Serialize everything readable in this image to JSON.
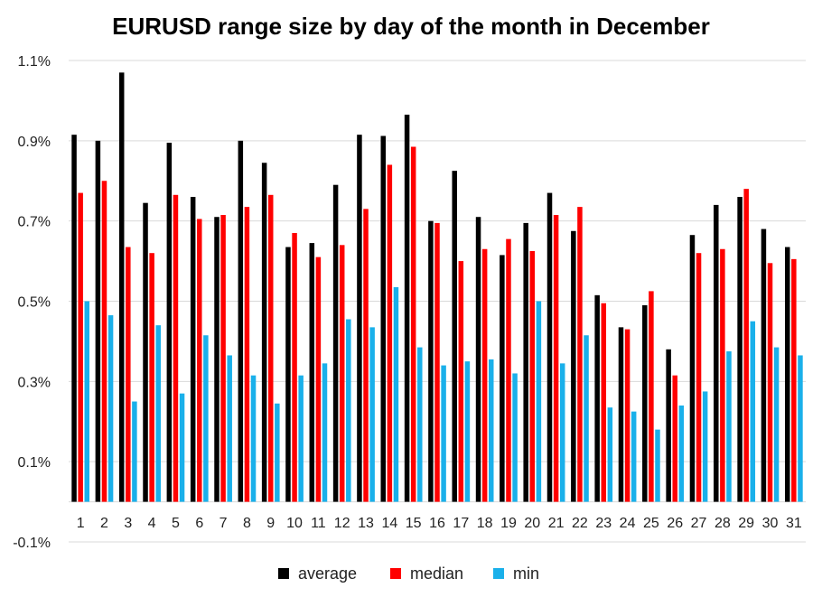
{
  "chart_data": {
    "type": "bar",
    "title": "EURUSD range size by day of the month in December",
    "xlabel": "",
    "ylabel": "",
    "ylim": [
      -0.1,
      1.1
    ],
    "yticks": [
      "-0.1%",
      "0.1%",
      "0.3%",
      "0.5%",
      "0.7%",
      "0.9%",
      "1.1%"
    ],
    "ytick_values": [
      -0.1,
      0.1,
      0.3,
      0.5,
      0.7,
      0.9,
      1.1
    ],
    "grid": true,
    "legend_position": "bottom",
    "categories": [
      "1",
      "2",
      "3",
      "4",
      "5",
      "6",
      "7",
      "8",
      "9",
      "10",
      "11",
      "12",
      "13",
      "14",
      "15",
      "16",
      "17",
      "18",
      "19",
      "20",
      "21",
      "22",
      "23",
      "24",
      "25",
      "26",
      "27",
      "28",
      "29",
      "30",
      "31"
    ],
    "series": [
      {
        "name": "average",
        "color": "#000000",
        "values": [
          0.915,
          0.9,
          1.07,
          0.745,
          0.895,
          0.76,
          0.71,
          0.9,
          0.845,
          0.635,
          0.645,
          0.79,
          0.915,
          0.912,
          0.965,
          0.7,
          0.825,
          0.71,
          0.615,
          0.695,
          0.77,
          0.675,
          0.515,
          0.435,
          0.49,
          0.38,
          0.665,
          0.74,
          0.76,
          0.68,
          0.635
        ]
      },
      {
        "name": "median",
        "color": "#ff0000",
        "values": [
          0.77,
          0.8,
          0.635,
          0.62,
          0.765,
          0.705,
          0.715,
          0.735,
          0.765,
          0.67,
          0.61,
          0.64,
          0.73,
          0.84,
          0.885,
          0.695,
          0.6,
          0.63,
          0.655,
          0.625,
          0.715,
          0.735,
          0.495,
          0.43,
          0.525,
          0.315,
          0.62,
          0.63,
          0.78,
          0.595,
          0.605
        ]
      },
      {
        "name": "min",
        "color": "#1ab0ea",
        "values": [
          0.5,
          0.465,
          0.25,
          0.44,
          0.27,
          0.415,
          0.365,
          0.315,
          0.245,
          0.315,
          0.345,
          0.455,
          0.435,
          0.535,
          0.385,
          0.34,
          0.35,
          0.355,
          0.32,
          0.5,
          0.345,
          0.415,
          0.235,
          0.225,
          0.18,
          0.24,
          0.275,
          0.375,
          0.45,
          0.385,
          0.365
        ]
      }
    ]
  }
}
